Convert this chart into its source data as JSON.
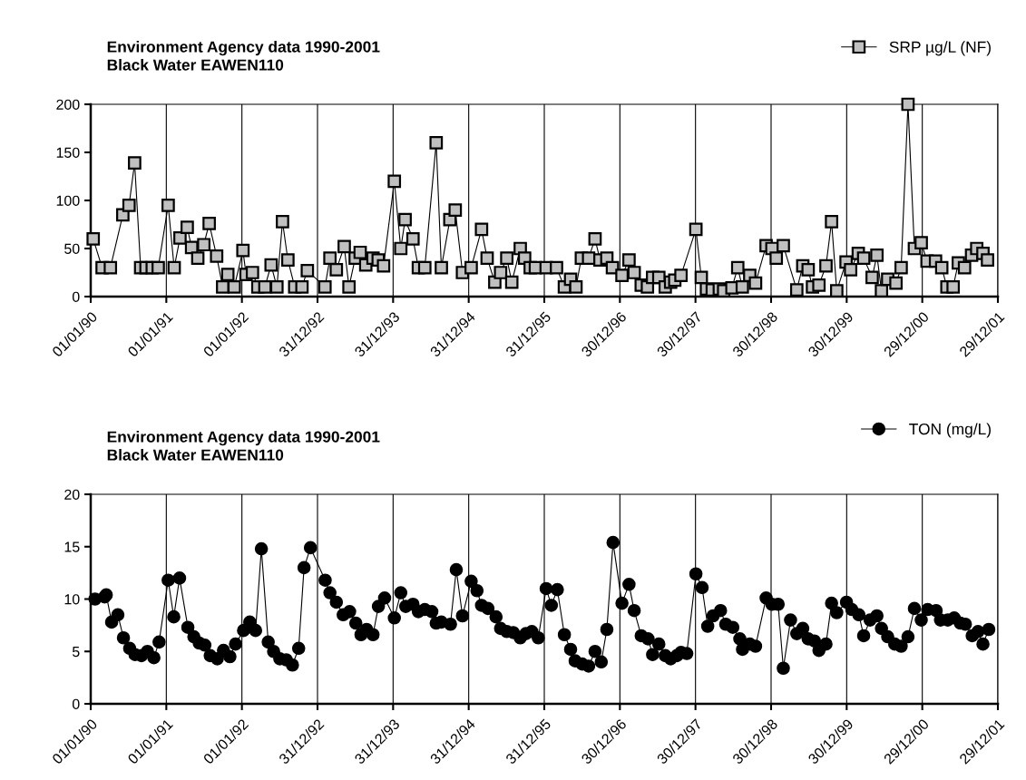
{
  "chart_data": [
    {
      "type": "line",
      "title": "Environment Agency data 1990-2001\nBlack Water EAWEN110",
      "legend": "top right",
      "grid": "x",
      "marker": "square",
      "line_style": "solid",
      "xlim": [
        "1990-01-01",
        "2001-12-29"
      ],
      "xticks": [
        {
          "value": "1990-01-01",
          "label": "01/01/90"
        },
        {
          "value": "1991-01-01",
          "label": "01/01/91"
        },
        {
          "value": "1992-01-01",
          "label": "01/01/92"
        },
        {
          "value": "1992-12-31",
          "label": "31/12/92"
        },
        {
          "value": "1993-12-31",
          "label": "31/12/93"
        },
        {
          "value": "1994-12-31",
          "label": "31/12/94"
        },
        {
          "value": "1995-12-31",
          "label": "31/12/95"
        },
        {
          "value": "1996-12-30",
          "label": "30/12/96"
        },
        {
          "value": "1997-12-30",
          "label": "30/12/97"
        },
        {
          "value": "1998-12-30",
          "label": "30/12/98"
        },
        {
          "value": "1999-12-30",
          "label": "30/12/99"
        },
        {
          "value": "2000-12-29",
          "label": "29/12/00"
        },
        {
          "value": "2001-12-29",
          "label": "29/12/01"
        }
      ],
      "ylim": [
        0,
        200
      ],
      "yticks": [
        0,
        50,
        100,
        150,
        200
      ],
      "series": [
        {
          "name": "SRP µg/L (NF)",
          "color": "#c0c0c0",
          "x": [
            "1990-01-13",
            "1990-02-25",
            "1990-04-06",
            "1990-06-05",
            "1990-07-05",
            "1990-08-01",
            "1990-08-30",
            "1990-09-25",
            "1990-10-25",
            "1990-11-23",
            "1991-01-10",
            "1991-02-08",
            "1991-03-08",
            "1991-04-12",
            "1991-05-03",
            "1991-06-02",
            "1991-07-01",
            "1991-07-27",
            "1991-09-01",
            "1991-09-30",
            "1991-10-25",
            "1991-11-25",
            "1992-01-06",
            "1992-01-21",
            "1992-02-21",
            "1992-03-18",
            "1992-04-21",
            "1992-05-21",
            "1992-06-18",
            "1992-07-15",
            "1992-08-10",
            "1992-09-12",
            "1992-10-17",
            "1992-11-12",
            "1993-02-05",
            "1993-03-01",
            "1993-04-01",
            "1993-05-09",
            "1993-06-01",
            "1993-07-01",
            "1993-07-25",
            "1993-08-21",
            "1993-09-25",
            "1993-10-20",
            "1993-11-15",
            "1994-01-06",
            "1994-02-06",
            "1994-02-27",
            "1994-04-06",
            "1994-05-02",
            "1994-06-02",
            "1994-07-27",
            "1994-08-21",
            "1994-10-01",
            "1994-10-27",
            "1994-12-01",
            "1995-01-12",
            "1995-03-03",
            "1995-03-30",
            "1995-05-06",
            "1995-06-03",
            "1995-07-03",
            "1995-07-27",
            "1995-09-06",
            "1995-09-27",
            "1995-10-24",
            "1995-11-18",
            "1996-01-09",
            "1996-02-28",
            "1996-04-06",
            "1996-05-06",
            "1996-06-01",
            "1996-06-27",
            "1996-08-01",
            "1996-09-01",
            "1996-09-25",
            "1996-10-28",
            "1996-11-24",
            "1997-01-09",
            "1997-02-12",
            "1997-03-09",
            "1997-04-12",
            "1997-05-12",
            "1997-06-06",
            "1997-07-06",
            "1997-08-06",
            "1997-09-01",
            "1997-09-21",
            "1997-10-21",
            "1998-01-01",
            "1998-01-27",
            "1998-02-21",
            "1998-03-21",
            "1998-04-24",
            "1998-05-15",
            "1998-06-24",
            "1998-07-22",
            "1998-08-13",
            "1998-09-18",
            "1998-10-16",
            "1998-12-06",
            "1999-01-03",
            "1999-01-24",
            "1999-02-27",
            "1999-05-03",
            "1999-06-01",
            "1999-06-27",
            "1999-07-18",
            "1999-08-18",
            "1999-09-21",
            "1999-10-18",
            "1999-11-12",
            "1999-12-27",
            "2000-01-18",
            "2000-02-24",
            "2000-03-21",
            "2000-05-01",
            "2000-05-24",
            "2000-06-15",
            "2000-07-15",
            "2000-08-24",
            "2000-09-18",
            "2000-10-21",
            "2000-11-21",
            "2000-12-24",
            "2001-01-21",
            "2001-03-03",
            "2001-04-02",
            "2001-04-27",
            "2001-05-27",
            "2001-06-21",
            "2001-07-21",
            "2001-08-24",
            "2001-09-18",
            "2001-10-18",
            "2001-11-09"
          ],
          "values": [
            60,
            30,
            30,
            85,
            95,
            139,
            30,
            30,
            30,
            30,
            95,
            30,
            61,
            72,
            51,
            40,
            54,
            76,
            42,
            10,
            23,
            10,
            48,
            23,
            25,
            10,
            10,
            33,
            10,
            78,
            38,
            10,
            10,
            27,
            10,
            40,
            28,
            52,
            10,
            40,
            46,
            33,
            40,
            38,
            32,
            120,
            50,
            80,
            60,
            30,
            30,
            160,
            30,
            80,
            90,
            25,
            30,
            70,
            40,
            15,
            25,
            40,
            15,
            50,
            40,
            30,
            30,
            30,
            30,
            10,
            18,
            10,
            40,
            40,
            60,
            38,
            40,
            30,
            22,
            38,
            25,
            12,
            10,
            20,
            20,
            10,
            15,
            17,
            22,
            70,
            20,
            8,
            7,
            8,
            6,
            9,
            30,
            10,
            22,
            14,
            53,
            50,
            40,
            53,
            7,
            32,
            28,
            10,
            12,
            32,
            78,
            6,
            36,
            28,
            45,
            40,
            20,
            43,
            6,
            18,
            14,
            30,
            200,
            50,
            56,
            37,
            37,
            30,
            10,
            10,
            35,
            30,
            43,
            50,
            45,
            38
          ]
        }
      ]
    },
    {
      "type": "line",
      "title": "Environment Agency data 1990-2001\nBlack Water EAWEN110",
      "legend": "top right",
      "grid": "x",
      "marker": "circle",
      "line_style": "solid",
      "xlim": [
        "1990-01-01",
        "2001-12-29"
      ],
      "xticks": [
        {
          "value": "1990-01-01",
          "label": "01/01/90"
        },
        {
          "value": "1991-01-01",
          "label": "01/01/91"
        },
        {
          "value": "1992-01-01",
          "label": "01/01/92"
        },
        {
          "value": "1992-12-31",
          "label": "31/12/92"
        },
        {
          "value": "1993-12-31",
          "label": "31/12/93"
        },
        {
          "value": "1994-12-31",
          "label": "31/12/94"
        },
        {
          "value": "1995-12-31",
          "label": "31/12/95"
        },
        {
          "value": "1996-12-30",
          "label": "30/12/96"
        },
        {
          "value": "1997-12-30",
          "label": "30/12/97"
        },
        {
          "value": "1998-12-30",
          "label": "30/12/98"
        },
        {
          "value": "1999-12-30",
          "label": "30/12/99"
        },
        {
          "value": "2000-12-29",
          "label": "29/12/00"
        },
        {
          "value": "2001-12-29",
          "label": "29/12/01"
        }
      ],
      "ylim": [
        0,
        20
      ],
      "yticks": [
        0,
        5,
        10,
        15,
        20
      ],
      "series": [
        {
          "name": "TON (mg/L)",
          "color": "#000000",
          "x": [
            "1990-01-22",
            "1990-03-09",
            "1990-03-17",
            "1990-04-12",
            "1990-05-12",
            "1990-06-08",
            "1990-07-08",
            "1990-08-03",
            "1990-09-03",
            "1990-10-02",
            "1990-11-02",
            "1990-11-27",
            "1991-01-10",
            "1991-02-06",
            "1991-03-06",
            "1991-04-15",
            "1991-05-14",
            "1991-06-09",
            "1991-07-06",
            "1991-08-01",
            "1991-09-04",
            "1991-10-04",
            "1991-11-04",
            "1991-12-01",
            "1992-01-09",
            "1992-02-08",
            "1992-03-07",
            "1992-04-04",
            "1992-05-07",
            "1992-06-02",
            "1992-07-02",
            "1992-08-02",
            "1992-09-01",
            "1992-10-01",
            "1992-10-27",
            "1992-11-27",
            "1993-02-06",
            "1993-03-01",
            "1993-04-01",
            "1993-05-04",
            "1993-06-04",
            "1993-07-04",
            "1993-07-29",
            "1993-08-25",
            "1993-09-25",
            "1993-10-21",
            "1993-11-20",
            "1994-01-06",
            "1994-02-06",
            "1994-03-02",
            "1994-04-06",
            "1994-05-02",
            "1994-06-02",
            "1994-07-06",
            "1994-07-27",
            "1994-08-21",
            "1994-10-04",
            "1994-11-01",
            "1994-12-01",
            "1995-01-12",
            "1995-02-09",
            "1995-03-03",
            "1995-04-03",
            "1995-05-12",
            "1995-06-03",
            "1995-07-03",
            "1995-08-03",
            "1995-09-06",
            "1995-10-03",
            "1995-11-01",
            "1995-12-02",
            "1996-01-09",
            "1996-02-03",
            "1996-03-03",
            "1996-04-06",
            "1996-05-06",
            "1996-05-28",
            "1996-07-01",
            "1996-08-01",
            "1996-09-01",
            "1996-10-01",
            "1996-10-28",
            "1996-11-27",
            "1997-01-09",
            "1997-02-12",
            "1997-03-09",
            "1997-04-12",
            "1997-05-15",
            "1997-06-06",
            "1997-07-06",
            "1997-08-06",
            "1997-09-01",
            "1997-10-01",
            "1997-10-21",
            "1997-11-18",
            "1998-01-01",
            "1998-01-31",
            "1998-02-27",
            "1998-03-25",
            "1998-04-30",
            "1998-05-25",
            "1998-06-28",
            "1998-08-01",
            "1998-08-14",
            "1998-09-18",
            "1998-10-16",
            "1998-12-06",
            "1999-01-03",
            "1999-02-02",
            "1999-02-27",
            "1999-04-03",
            "1999-05-03",
            "1999-06-01",
            "1999-06-27",
            "1999-07-27",
            "1999-08-18",
            "1999-09-21",
            "1999-10-18",
            "1999-11-12",
            "1999-12-29",
            "2000-01-24",
            "2000-02-27",
            "2000-03-21",
            "2000-04-21",
            "2000-05-24",
            "2000-06-15",
            "2000-07-15",
            "2000-08-18",
            "2000-09-18",
            "2000-10-21",
            "2000-11-21",
            "2000-12-24",
            "2001-01-24",
            "2001-03-06",
            "2001-03-27",
            "2001-05-01",
            "2001-06-01",
            "2001-07-01",
            "2001-07-25",
            "2001-08-27",
            "2001-09-24",
            "2001-10-18",
            "2001-11-15"
          ],
          "values": [
            10.0,
            10.2,
            10.4,
            7.8,
            8.5,
            6.3,
            5.3,
            4.7,
            4.6,
            5.0,
            4.4,
            5.9,
            11.8,
            8.3,
            12.0,
            7.3,
            6.4,
            5.8,
            5.6,
            4.6,
            4.3,
            5.1,
            4.5,
            5.7,
            7.0,
            7.8,
            7.0,
            14.8,
            5.9,
            5.0,
            4.3,
            4.2,
            3.7,
            5.3,
            13.0,
            14.9,
            11.8,
            10.6,
            9.7,
            8.5,
            8.8,
            7.7,
            6.6,
            7.1,
            6.6,
            9.3,
            10.1,
            8.2,
            10.6,
            9.3,
            9.5,
            8.8,
            9.0,
            8.8,
            7.7,
            7.8,
            7.6,
            12.8,
            8.4,
            11.7,
            10.8,
            9.4,
            9.1,
            8.3,
            7.2,
            6.9,
            6.8,
            6.3,
            6.7,
            6.9,
            6.3,
            11.0,
            9.4,
            10.9,
            6.6,
            5.2,
            4.1,
            3.8,
            3.6,
            5.0,
            4.0,
            7.1,
            15.4,
            9.6,
            11.4,
            8.9,
            6.5,
            6.2,
            4.7,
            5.7,
            4.6,
            4.3,
            4.6,
            4.9,
            4.8,
            12.4,
            11.1,
            7.4,
            8.4,
            8.9,
            7.6,
            7.3,
            6.2,
            5.2,
            5.7,
            5.5,
            10.1,
            9.5,
            9.5,
            3.4,
            8.0,
            6.7,
            7.2,
            6.2,
            6.0,
            5.1,
            5.7,
            9.6,
            8.7,
            9.7,
            9.0,
            8.5,
            6.5,
            8.0,
            8.4,
            7.2,
            6.4,
            5.7,
            5.5,
            6.4,
            9.1,
            8.0,
            9.0,
            8.9,
            8.0,
            8.0,
            8.2,
            7.7,
            7.6,
            6.5,
            6.9,
            5.7,
            7.1
          ]
        }
      ]
    }
  ]
}
